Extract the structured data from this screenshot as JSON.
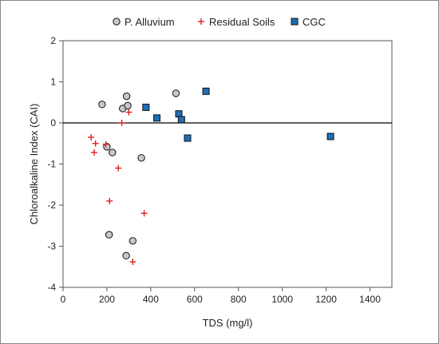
{
  "chart_data": {
    "type": "scatter",
    "xlabel": "TDS (mg/l)",
    "ylabel": "Chloroalkaline Index (CAI)",
    "xlim": [
      0,
      1500
    ],
    "ylim": [
      -4,
      2
    ],
    "x_ticks": [
      "0",
      "200",
      "400",
      "600",
      "800",
      "1000",
      "1200",
      "1400"
    ],
    "y_ticks": [
      "-4",
      "-3",
      "-2",
      "-1",
      "0",
      "1",
      "2"
    ],
    "grid": false,
    "zero_line": true,
    "legend_position": "top",
    "series": [
      {
        "name": "P. Alluvium",
        "marker": "circle",
        "color": "#c8c8c8",
        "points": [
          {
            "x": 178,
            "y": 0.45
          },
          {
            "x": 272,
            "y": 0.35
          },
          {
            "x": 290,
            "y": 0.65
          },
          {
            "x": 295,
            "y": 0.42
          },
          {
            "x": 515,
            "y": 0.72
          },
          {
            "x": 200,
            "y": -0.58
          },
          {
            "x": 225,
            "y": -0.72
          },
          {
            "x": 357,
            "y": -0.85
          },
          {
            "x": 210,
            "y": -2.72
          },
          {
            "x": 318,
            "y": -2.87
          },
          {
            "x": 288,
            "y": -3.23
          }
        ]
      },
      {
        "name": "Residual Soils",
        "marker": "plus",
        "color": "#e02020",
        "points": [
          {
            "x": 300,
            "y": 0.26
          },
          {
            "x": 268,
            "y": 0.0
          },
          {
            "x": 128,
            "y": -0.35
          },
          {
            "x": 148,
            "y": -0.5
          },
          {
            "x": 195,
            "y": -0.52
          },
          {
            "x": 142,
            "y": -0.72
          },
          {
            "x": 252,
            "y": -1.1
          },
          {
            "x": 212,
            "y": -1.9
          },
          {
            "x": 370,
            "y": -2.2
          },
          {
            "x": 318,
            "y": -3.38
          }
        ]
      },
      {
        "name": "CGC",
        "marker": "square",
        "color": "#1f6fb5",
        "points": [
          {
            "x": 378,
            "y": 0.38
          },
          {
            "x": 428,
            "y": 0.12
          },
          {
            "x": 528,
            "y": 0.22
          },
          {
            "x": 540,
            "y": 0.08
          },
          {
            "x": 652,
            "y": 0.77
          },
          {
            "x": 568,
            "y": -0.37
          },
          {
            "x": 1220,
            "y": -0.33
          }
        ]
      }
    ]
  }
}
